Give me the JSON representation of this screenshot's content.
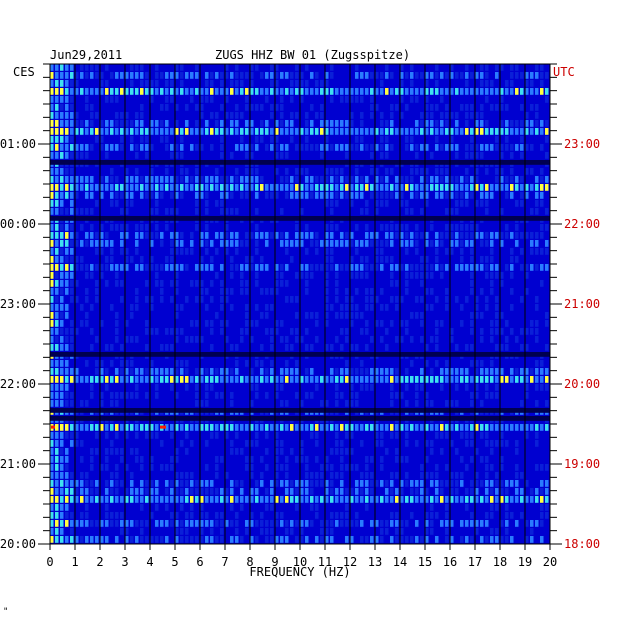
{
  "header": {
    "date": "Jun29,2011",
    "station": "ZUGS HHZ BW 01 (Zugsspitze)",
    "left_tz": "CES",
    "right_tz": "UTC"
  },
  "chart_data": {
    "type": "heatmap",
    "title": "ZUGS HHZ BW 01 (Zugsspitze)",
    "date": "Jun29,2011",
    "xlabel": "FREQUENCY (HZ)",
    "xlim": [
      0,
      20
    ],
    "x_ticks": [
      "0",
      "1",
      "2",
      "3",
      "4",
      "5",
      "6",
      "7",
      "8",
      "9",
      "10",
      "11",
      "12",
      "13",
      "14",
      "15",
      "16",
      "17",
      "18",
      "19",
      "20"
    ],
    "left_axis": {
      "label": "CES",
      "ticks": [
        "01:00",
        "00:00",
        "23:00",
        "22:00",
        "21:00",
        "20:00"
      ]
    },
    "right_axis": {
      "label": "UTC",
      "ticks": [
        "23:00",
        "22:00",
        "21:00",
        "20:00",
        "19:00",
        "18:00"
      ]
    },
    "colors": {
      "background": "#0000d0",
      "low": "#0a1fd8",
      "mid": "#2a7cff",
      "high": "#3fe0f0",
      "peak": "#ffff40",
      "max": "#ff2000",
      "grid": "#000000",
      "utc_text": "#cc0000"
    },
    "notes_rows": 60
  },
  "footer": {
    "mark": "\""
  }
}
